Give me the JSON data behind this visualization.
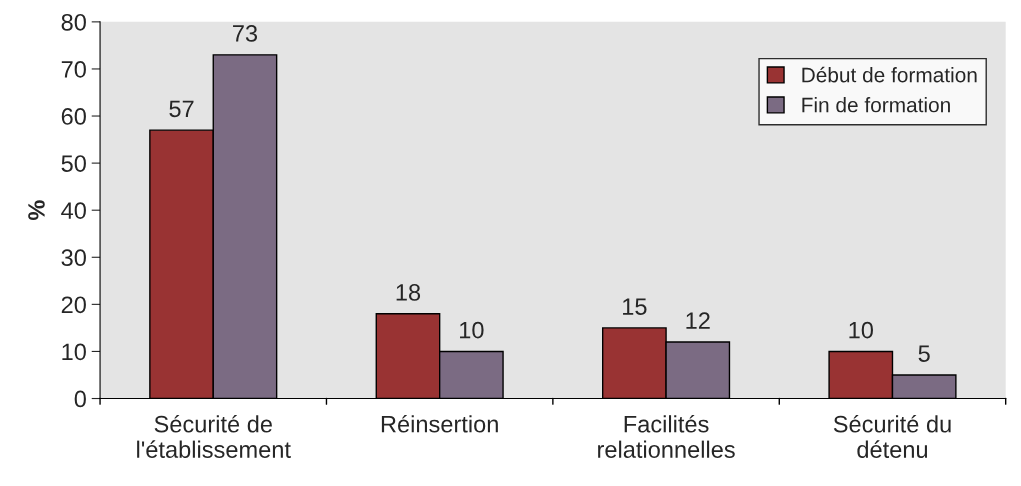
{
  "chart_data": {
    "type": "bar",
    "ylabel": "%",
    "categories": [
      "Sécurité de\nl'établissement",
      "Réinsertion",
      "Facilités\nrelationnelles",
      "Sécurité du\ndétenu"
    ],
    "series": [
      {
        "name": "Début de formation",
        "color": "#993333",
        "values": [
          57,
          18,
          15,
          10
        ]
      },
      {
        "name": "Fin de formation",
        "color": "#7b6b83",
        "values": [
          73,
          10,
          12,
          5
        ]
      }
    ],
    "ylim": [
      0,
      80
    ],
    "yticks": [
      0,
      10,
      20,
      30,
      40,
      50,
      60,
      70,
      80
    ],
    "grid": false,
    "legend": "top right",
    "data_labels": true
  }
}
